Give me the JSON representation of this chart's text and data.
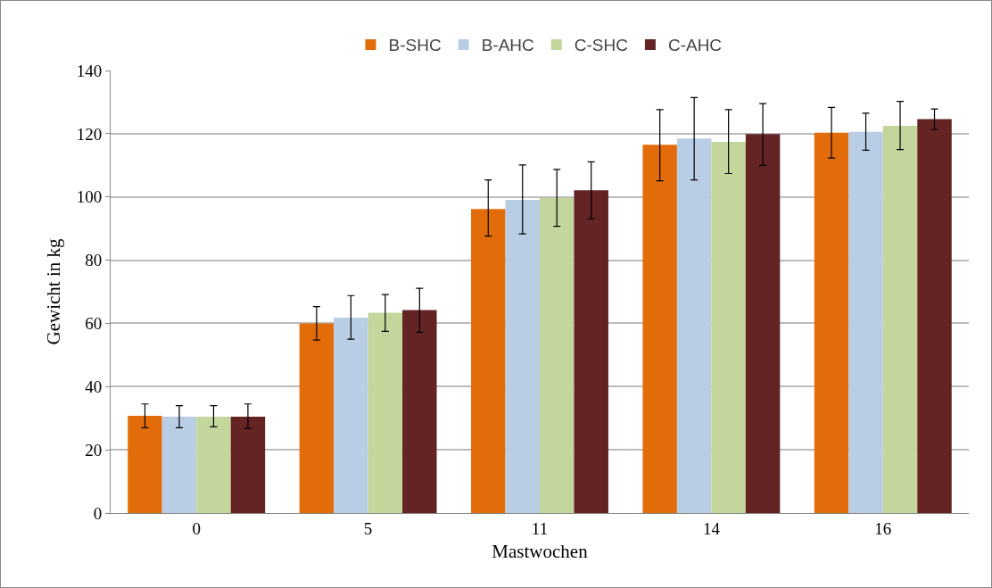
{
  "chart_data": {
    "type": "bar",
    "xlabel": "Mastwochen",
    "ylabel": "Gewicht in kg",
    "categories": [
      "0",
      "5",
      "11",
      "14",
      "16"
    ],
    "series": [
      {
        "name": "B-SHC",
        "color": "#e36c0a",
        "values": [
          30.8,
          60,
          96.2,
          116.5,
          120.3
        ],
        "errors": [
          [
            27,
            34.5
          ],
          [
            54.7,
            65.3
          ],
          [
            87.6,
            105.4
          ],
          [
            105.1,
            127.6
          ],
          [
            112.3,
            128.3
          ]
        ]
      },
      {
        "name": "B-AHC",
        "color": "#b9cde5",
        "values": [
          30.5,
          61.8,
          99.1,
          118.5,
          120.6
        ],
        "errors": [
          [
            27,
            34
          ],
          [
            55,
            68.8
          ],
          [
            88.3,
            110.1
          ],
          [
            105.4,
            131.4
          ],
          [
            114.8,
            126.5
          ]
        ]
      },
      {
        "name": "C-SHC",
        "color": "#c3d69b",
        "values": [
          30.5,
          63.4,
          99.7,
          117.4,
          122.5
        ],
        "errors": [
          [
            27.3,
            34
          ],
          [
            57.5,
            69.1
          ],
          [
            90.7,
            108.7
          ],
          [
            107.4,
            127.6
          ],
          [
            115,
            130.2
          ]
        ]
      },
      {
        "name": "C-AHC",
        "color": "#632423",
        "values": [
          30.5,
          64.2,
          102.1,
          119.9,
          124.6
        ],
        "errors": [
          [
            26.7,
            34.5
          ],
          [
            57.2,
            71.1
          ],
          [
            93.1,
            111.1
          ],
          [
            110,
            129.5
          ],
          [
            121.3,
            127.8
          ]
        ]
      }
    ],
    "ylim": [
      0,
      140
    ],
    "yticks": [
      0,
      20,
      40,
      60,
      80,
      100,
      120,
      140
    ],
    "grid": "y",
    "legend": "top"
  }
}
